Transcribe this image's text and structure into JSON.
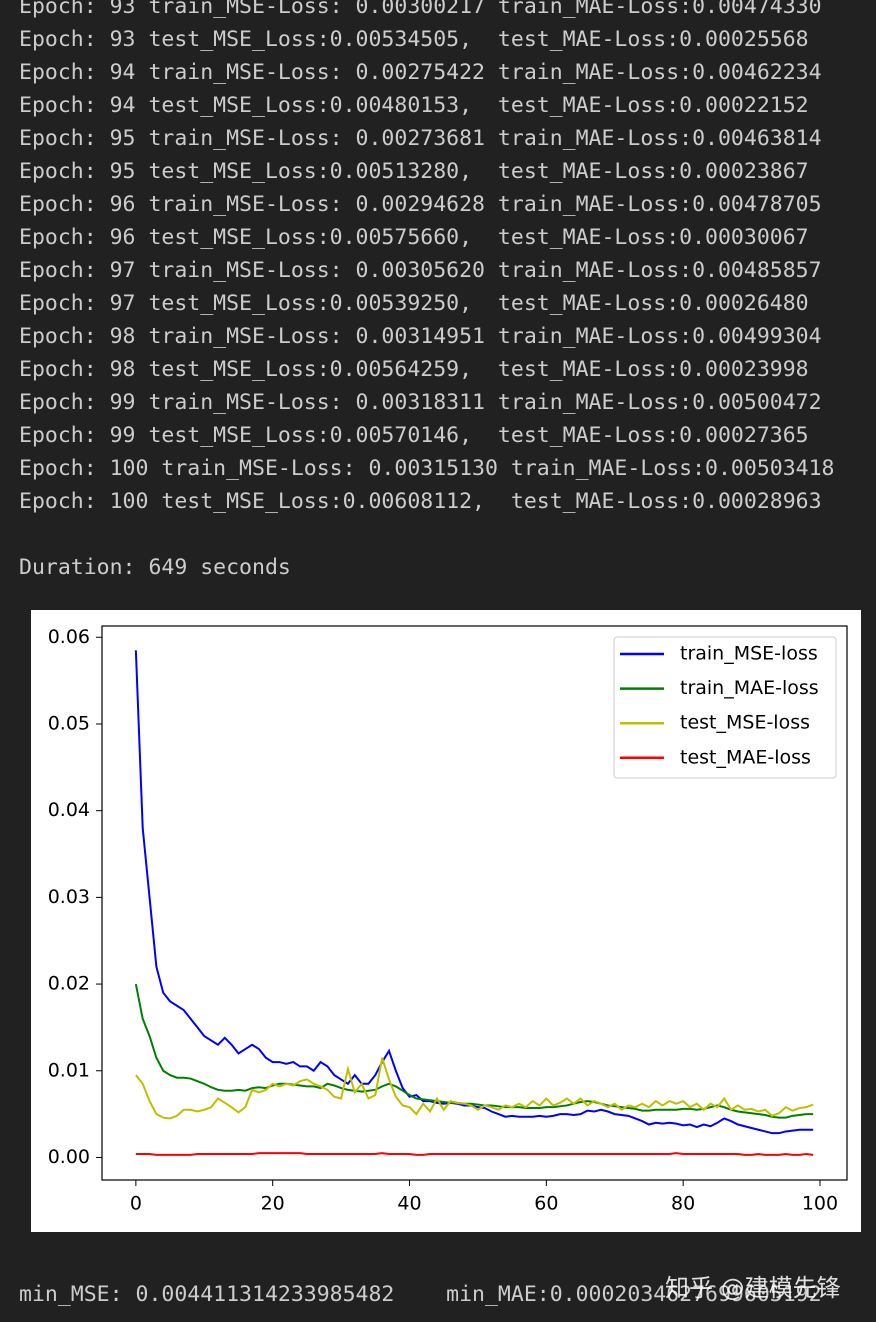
{
  "log_lines": [
    "Epoch: 93 train_MSE-Loss: 0.00300217 train_MAE-Loss:0.00474330",
    "Epoch: 93 test_MSE_Loss:0.00534505,  test_MAE-Loss:0.00025568",
    "Epoch: 94 train_MSE-Loss: 0.00275422 train_MAE-Loss:0.00462234",
    "Epoch: 94 test_MSE_Loss:0.00480153,  test_MAE-Loss:0.00022152",
    "Epoch: 95 train_MSE-Loss: 0.00273681 train_MAE-Loss:0.00463814",
    "Epoch: 95 test_MSE_Loss:0.00513280,  test_MAE-Loss:0.00023867",
    "Epoch: 96 train_MSE-Loss: 0.00294628 train_MAE-Loss:0.00478705",
    "Epoch: 96 test_MSE_Loss:0.00575660,  test_MAE-Loss:0.00030067",
    "Epoch: 97 train_MSE-Loss: 0.00305620 train_MAE-Loss:0.00485857",
    "Epoch: 97 test_MSE_Loss:0.00539250,  test_MAE-Loss:0.00026480",
    "Epoch: 98 train_MSE-Loss: 0.00314951 train_MAE-Loss:0.00499304",
    "Epoch: 98 test_MSE_Loss:0.00564259,  test_MAE-Loss:0.00023998",
    "Epoch: 99 train_MSE-Loss: 0.00318311 train_MAE-Loss:0.00500472",
    "Epoch: 99 test_MSE_Loss:0.00570146,  test_MAE-Loss:0.00027365",
    "Epoch: 100 train_MSE-Loss: 0.00315130 train_MAE-Loss:0.00503418",
    "Epoch: 100 test_MSE_Loss:0.00608112,  test_MAE-Loss:0.00028963"
  ],
  "duration": "Duration: 649 seconds",
  "chart_data": {
    "type": "line",
    "legend": "upper right",
    "xlim": [
      -4.95,
      103.95
    ],
    "xticks": [
      0,
      20,
      40,
      60,
      80,
      100
    ],
    "ylim": [
      -0.0026,
      0.0613
    ],
    "yticks": [
      {
        "value": 0,
        "label": "0.00"
      },
      0.01,
      0.02,
      0.03,
      0.04,
      0.05,
      0.06
    ],
    "x": [
      0,
      1,
      2,
      3,
      4,
      5,
      6,
      7,
      8,
      9,
      10,
      11,
      12,
      13,
      14,
      15,
      16,
      17,
      18,
      19,
      20,
      21,
      22,
      23,
      24,
      25,
      26,
      27,
      28,
      29,
      30,
      31,
      32,
      33,
      34,
      35,
      36,
      37,
      38,
      39,
      40,
      41,
      42,
      43,
      44,
      45,
      46,
      47,
      48,
      49,
      50,
      51,
      52,
      53,
      54,
      55,
      56,
      57,
      58,
      59,
      60,
      61,
      62,
      63,
      64,
      65,
      66,
      67,
      68,
      69,
      70,
      71,
      72,
      73,
      74,
      75,
      76,
      77,
      78,
      79,
      80,
      81,
      82,
      83,
      84,
      85,
      86,
      87,
      88,
      89,
      90,
      91,
      92,
      93,
      94,
      95,
      96,
      97,
      98,
      99
    ],
    "series": [
      {
        "name": "train_MSE-loss",
        "color": "#0000ff",
        "values": [
          0.0585,
          0.038,
          0.03,
          0.022,
          0.019,
          0.018,
          0.0175,
          0.017,
          0.016,
          0.015,
          0.014,
          0.0135,
          0.013,
          0.0138,
          0.013,
          0.012,
          0.0125,
          0.013,
          0.0125,
          0.0115,
          0.011,
          0.011,
          0.0108,
          0.011,
          0.0105,
          0.0105,
          0.01,
          0.011,
          0.0105,
          0.0095,
          0.009,
          0.0085,
          0.0095,
          0.0085,
          0.0085,
          0.0095,
          0.011,
          0.0123,
          0.01,
          0.008,
          0.007,
          0.0072,
          0.0065,
          0.0065,
          0.0063,
          0.0062,
          0.0063,
          0.0062,
          0.006,
          0.006,
          0.0058,
          0.0057,
          0.0053,
          0.005,
          0.0047,
          0.0048,
          0.0047,
          0.0047,
          0.0047,
          0.0048,
          0.0047,
          0.0048,
          0.005,
          0.005,
          0.0049,
          0.005,
          0.0054,
          0.0053,
          0.0055,
          0.0053,
          0.005,
          0.0049,
          0.0048,
          0.0045,
          0.0042,
          0.0038,
          0.004,
          0.0039,
          0.004,
          0.0039,
          0.0037,
          0.0038,
          0.0035,
          0.0038,
          0.0036,
          0.004,
          0.0045,
          0.0042,
          0.0038,
          0.0036,
          0.0034,
          0.0032,
          0.003,
          0.0028,
          0.0028,
          0.003,
          0.0031,
          0.0032,
          0.0032,
          0.0032
        ]
      },
      {
        "name": "train_MAE-loss",
        "color": "#008000",
        "values": [
          0.02,
          0.016,
          0.014,
          0.0115,
          0.01,
          0.0095,
          0.0092,
          0.0092,
          0.0091,
          0.0088,
          0.0085,
          0.0081,
          0.0078,
          0.0077,
          0.0077,
          0.0078,
          0.0077,
          0.008,
          0.0081,
          0.008,
          0.0083,
          0.0085,
          0.0085,
          0.0084,
          0.0083,
          0.0082,
          0.0082,
          0.008,
          0.0085,
          0.0083,
          0.008,
          0.0078,
          0.0077,
          0.0076,
          0.0077,
          0.0078,
          0.0082,
          0.0085,
          0.0082,
          0.0077,
          0.0072,
          0.0068,
          0.0067,
          0.0066,
          0.0065,
          0.0064,
          0.0063,
          0.0063,
          0.0062,
          0.0062,
          0.0061,
          0.006,
          0.006,
          0.0059,
          0.0058,
          0.0058,
          0.0058,
          0.0057,
          0.0057,
          0.0057,
          0.0058,
          0.0058,
          0.0059,
          0.006,
          0.0062,
          0.0064,
          0.0065,
          0.0064,
          0.0062,
          0.006,
          0.0059,
          0.0058,
          0.0057,
          0.0056,
          0.0054,
          0.0054,
          0.0055,
          0.0055,
          0.0055,
          0.0055,
          0.0056,
          0.0056,
          0.0055,
          0.0056,
          0.0058,
          0.006,
          0.0058,
          0.0055,
          0.0053,
          0.0052,
          0.0051,
          0.005,
          0.0049,
          0.0047,
          0.0046,
          0.0046,
          0.0048,
          0.0049,
          0.005,
          0.005
        ]
      },
      {
        "name": "test_MSE-loss",
        "color": "#bfbf00",
        "values": [
          0.0095,
          0.0085,
          0.0065,
          0.005,
          0.0046,
          0.0045,
          0.0048,
          0.0055,
          0.0055,
          0.0053,
          0.0055,
          0.0058,
          0.0068,
          0.0063,
          0.0058,
          0.0052,
          0.0058,
          0.0078,
          0.0075,
          0.0078,
          0.0085,
          0.0082,
          0.0085,
          0.0083,
          0.0088,
          0.009,
          0.0085,
          0.0082,
          0.0078,
          0.007,
          0.0068,
          0.0102,
          0.0075,
          0.0085,
          0.0068,
          0.0072,
          0.0115,
          0.009,
          0.007,
          0.006,
          0.0058,
          0.005,
          0.0062,
          0.0053,
          0.0068,
          0.0055,
          0.0065,
          0.0063,
          0.0062,
          0.006,
          0.0055,
          0.006,
          0.0058,
          0.0055,
          0.006,
          0.0058,
          0.0062,
          0.0058,
          0.0065,
          0.006,
          0.0068,
          0.006,
          0.0063,
          0.0068,
          0.0062,
          0.0068,
          0.006,
          0.0065,
          0.0062,
          0.0058,
          0.0062,
          0.0055,
          0.006,
          0.0058,
          0.0062,
          0.0058,
          0.0065,
          0.006,
          0.0065,
          0.0062,
          0.0065,
          0.0058,
          0.0062,
          0.0055,
          0.0062,
          0.0058,
          0.0068,
          0.0055,
          0.006,
          0.0055,
          0.0056,
          0.0053,
          0.0055,
          0.0048,
          0.0051,
          0.0058,
          0.0054,
          0.0057,
          0.0058,
          0.0061
        ]
      },
      {
        "name": "test_MAE-loss",
        "color": "#ff0000",
        "values": [
          0.0004,
          0.0004,
          0.0004,
          0.0003,
          0.0003,
          0.0003,
          0.0003,
          0.0003,
          0.0003,
          0.0004,
          0.0004,
          0.0004,
          0.0004,
          0.0004,
          0.0004,
          0.0004,
          0.0004,
          0.0004,
          0.0005,
          0.0005,
          0.0005,
          0.0005,
          0.0005,
          0.0005,
          0.0005,
          0.0004,
          0.0004,
          0.0004,
          0.0004,
          0.0004,
          0.0004,
          0.0004,
          0.0004,
          0.0004,
          0.0004,
          0.0004,
          0.0005,
          0.0004,
          0.0004,
          0.0004,
          0.0004,
          0.0003,
          0.0003,
          0.0004,
          0.0004,
          0.0004,
          0.0004,
          0.0004,
          0.0004,
          0.0004,
          0.0004,
          0.0004,
          0.0004,
          0.0004,
          0.0004,
          0.0004,
          0.0004,
          0.0004,
          0.0004,
          0.0004,
          0.0004,
          0.0004,
          0.0004,
          0.0004,
          0.0004,
          0.0004,
          0.0004,
          0.0004,
          0.0004,
          0.0004,
          0.0004,
          0.0004,
          0.0004,
          0.0004,
          0.0004,
          0.0004,
          0.0004,
          0.0004,
          0.0004,
          0.0005,
          0.0004,
          0.0004,
          0.0004,
          0.0004,
          0.0004,
          0.0004,
          0.0004,
          0.0004,
          0.0004,
          0.0003,
          0.0003,
          0.0004,
          0.0003,
          0.0003,
          0.0003,
          0.0004,
          0.0003,
          0.0003,
          0.0004,
          0.0003
        ]
      }
    ]
  },
  "summary": "min_MSE: 0.004411314233985482    min_MAE:0.0002034627699605192",
  "watermark": "知乎 @建模先锋"
}
